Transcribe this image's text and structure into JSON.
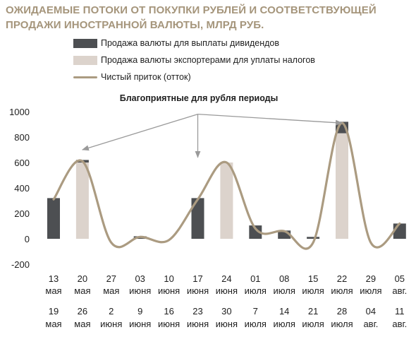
{
  "title_lines": [
    "ОЖИДАЕМЫЕ ПОТОКИ ОТ ПОКУПКИ РУБЛЕЙ И СООТВЕТСТВУЮЩЕЙ",
    "ПРОДАЖИ ИНОСТРАННОЙ ВАЛЮТЫ, МЛРД РУБ."
  ],
  "colors": {
    "title": "#a5957b",
    "dividends": "#4d4f52",
    "exporters": "#dcd3cc",
    "net": "#ab9b81",
    "arrow": "#9a9a9a"
  },
  "chart_data": {
    "type": "bar",
    "title": "ОЖИДАЕМЫЕ ПОТОКИ ОТ ПОКУПКИ РУБЛЕЙ И СООТВЕТСТВУЮЩЕЙ ПРОДАЖИ ИНОСТРАННОЙ ВАЛЮТЫ, МЛРД РУБ.",
    "annotation": "Благоприятные для рубля периоды",
    "ylim": [
      -200,
      1000
    ],
    "yticks": [
      -200,
      0,
      200,
      400,
      600,
      800,
      1000
    ],
    "grid": false,
    "legend_position": "top",
    "categories_week_start": [
      {
        "day": "13",
        "month": "мая"
      },
      {
        "day": "20",
        "month": "мая"
      },
      {
        "day": "27",
        "month": "мая"
      },
      {
        "day": "03",
        "month": "июня"
      },
      {
        "day": "10",
        "month": "июня"
      },
      {
        "day": "17",
        "month": "июня"
      },
      {
        "day": "24",
        "month": "июня"
      },
      {
        "day": "01",
        "month": "июля"
      },
      {
        "day": "08",
        "month": "июля"
      },
      {
        "day": "15",
        "month": "июля"
      },
      {
        "day": "22",
        "month": "июля"
      },
      {
        "day": "29",
        "month": "июля"
      },
      {
        "day": "05",
        "month": "авг."
      }
    ],
    "categories_week_end": [
      {
        "day": "19",
        "month": "мая"
      },
      {
        "day": "26",
        "month": "мая"
      },
      {
        "day": "2",
        "month": "июня"
      },
      {
        "day": "9",
        "month": "июня"
      },
      {
        "day": "16",
        "month": "июня"
      },
      {
        "day": "23",
        "month": "июня"
      },
      {
        "day": "30",
        "month": "июня"
      },
      {
        "day": "7",
        "month": "июля"
      },
      {
        "day": "14",
        "month": "июля"
      },
      {
        "day": "21",
        "month": "июля"
      },
      {
        "day": "28",
        "month": "июля"
      },
      {
        "day": "04",
        "month": "авг."
      },
      {
        "day": "11",
        "month": "авг."
      }
    ],
    "series": [
      {
        "name": "Продажа валюты для выплаты дивидендов",
        "kind": "bar",
        "values": [
          320,
          620,
          0,
          20,
          0,
          320,
          0,
          105,
          65,
          15,
          920,
          0,
          120
        ]
      },
      {
        "name": "Продажа валюты экспортерами для уплаты налогов",
        "kind": "bar",
        "values": [
          0,
          600,
          0,
          0,
          0,
          0,
          600,
          0,
          0,
          0,
          830,
          0,
          0
        ]
      },
      {
        "name": "Чистый приток (отток)",
        "kind": "line",
        "values": [
          310,
          610,
          -30,
          15,
          -10,
          310,
          600,
          80,
          60,
          -30,
          910,
          -30,
          120
        ]
      }
    ],
    "arrows": [
      {
        "from_category": 5,
        "from_value": 980,
        "to_category": 1,
        "to_value": 700
      },
      {
        "from_category": 5,
        "from_value": 980,
        "to_category": 5,
        "to_value": 640
      },
      {
        "from_category": 5,
        "from_value": 980,
        "to_category": 10,
        "to_value": 910
      }
    ]
  }
}
